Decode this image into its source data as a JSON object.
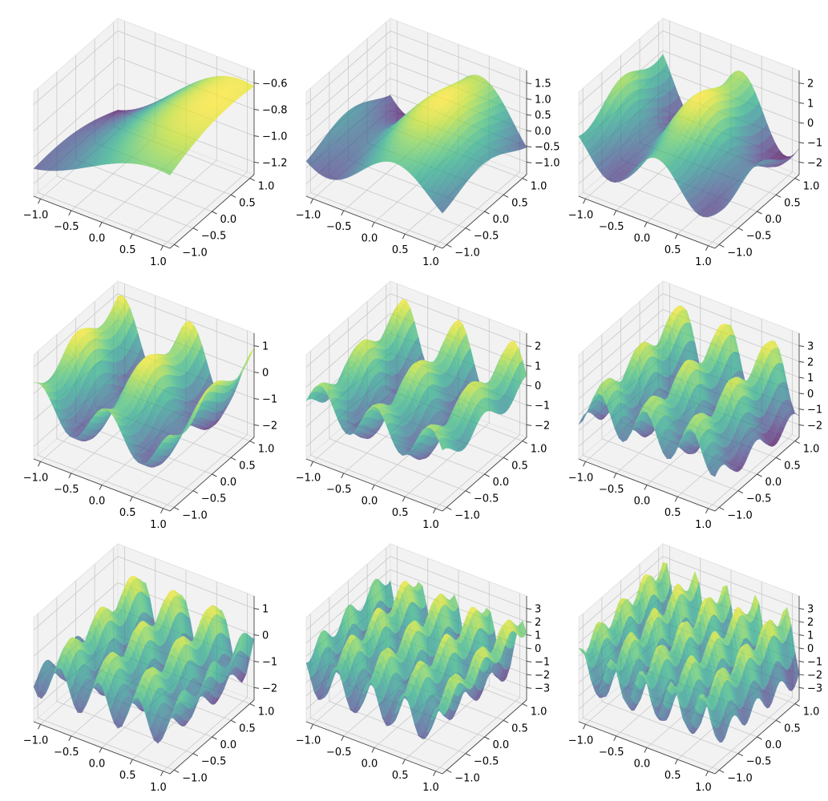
{
  "figure": {
    "colormap": "viridis",
    "surface_alpha": 0.7,
    "pane_color": "#f2f2f2",
    "grid_color": "#c8c8c8"
  },
  "chart_data": [
    {
      "type": "surface",
      "row": 1,
      "col": 1,
      "freq": 0.5,
      "x_ticks": [
        "−1.0",
        "−0.5",
        "0.0",
        "0.5",
        "1.0"
      ],
      "y_ticks": [
        "−1.0",
        "−0.5",
        "0.0",
        "0.5",
        "1.0"
      ],
      "z_ticks": [
        "−1.2",
        "−1.0",
        "−0.8",
        "−0.6"
      ],
      "zlim": [
        -1.3,
        -0.5
      ]
    },
    {
      "type": "surface",
      "row": 1,
      "col": 2,
      "freq": 1.0,
      "x_ticks": [
        "−1.0",
        "−0.5",
        "0.0",
        "0.5",
        "1.0"
      ],
      "y_ticks": [
        "−1.0",
        "−0.5",
        "0.0",
        "0.5",
        "1.0"
      ],
      "z_ticks": [
        "−1.0",
        "−0.5",
        "0.0",
        "0.5",
        "1.0",
        "1.5"
      ],
      "zlim": [
        -1.3,
        1.9
      ]
    },
    {
      "type": "surface",
      "row": 1,
      "col": 3,
      "freq": 1.5,
      "x_ticks": [
        "−1.0",
        "−0.5",
        "0.0",
        "0.5",
        "1.0"
      ],
      "y_ticks": [
        "−1.0",
        "−0.5",
        "0.0",
        "0.5",
        "1.0"
      ],
      "z_ticks": [
        "−2",
        "−1",
        "0",
        "1",
        "2"
      ],
      "zlim": [
        -2.1,
        2.6
      ]
    },
    {
      "type": "surface",
      "row": 2,
      "col": 1,
      "freq": 2.0,
      "x_ticks": [
        "−1.0",
        "−0.5",
        "0.0",
        "0.5",
        "1.0"
      ],
      "y_ticks": [
        "−1.0",
        "−0.5",
        "0.0",
        "0.5",
        "1.0"
      ],
      "z_ticks": [
        "−2",
        "−1",
        "0",
        "1"
      ],
      "zlim": [
        -2.6,
        2.0
      ]
    },
    {
      "type": "surface",
      "row": 2,
      "col": 2,
      "freq": 2.5,
      "x_ticks": [
        "−1.0",
        "−0.5",
        "0.0",
        "0.5",
        "1.0"
      ],
      "y_ticks": [
        "−1.0",
        "−0.5",
        "0.0",
        "0.5",
        "1.0"
      ],
      "z_ticks": [
        "−2",
        "−1",
        "0",
        "1",
        "2"
      ],
      "zlim": [
        -2.1,
        2.4
      ]
    },
    {
      "type": "surface",
      "row": 2,
      "col": 3,
      "freq": 3.0,
      "x_ticks": [
        "−1.0",
        "−0.5",
        "0.0",
        "0.5",
        "1.0"
      ],
      "y_ticks": [
        "−1.0",
        "−0.5",
        "0.0",
        "0.5",
        "1.0"
      ],
      "z_ticks": [
        "−2",
        "−1",
        "0",
        "1",
        "2",
        "3"
      ],
      "zlim": [
        -2.3,
        3.2
      ]
    },
    {
      "type": "surface",
      "row": 3,
      "col": 1,
      "freq": 3.5,
      "x_ticks": [
        "−1.0",
        "−0.5",
        "0.0",
        "0.5",
        "1.0"
      ],
      "y_ticks": [
        "−1.0",
        "−0.5",
        "0.0",
        "0.5",
        "1.0"
      ],
      "z_ticks": [
        "−2",
        "−1",
        "0",
        "1"
      ],
      "zlim": [
        -2.1,
        1.9
      ]
    },
    {
      "type": "surface",
      "row": 3,
      "col": 2,
      "freq": 4.0,
      "x_ticks": [
        "−1.0",
        "−0.5",
        "0.0",
        "0.5",
        "1.0"
      ],
      "y_ticks": [
        "−1.0",
        "−0.5",
        "0.0",
        "0.5",
        "1.0"
      ],
      "z_ticks": [
        "−3",
        "−2",
        "−1",
        "0",
        "1",
        "2",
        "3"
      ],
      "zlim": [
        -3.4,
        3.5
      ]
    },
    {
      "type": "surface",
      "row": 3,
      "col": 3,
      "freq": 4.5,
      "x_ticks": [
        "−1.0",
        "−0.5",
        "0.0",
        "0.5",
        "1.0"
      ],
      "y_ticks": [
        "−1.0",
        "−0.5",
        "0.0",
        "0.5",
        "1.0"
      ],
      "z_ticks": [
        "−3",
        "−2",
        "−1",
        "0",
        "1",
        "2",
        "3"
      ],
      "zlim": [
        -3.4,
        3.4
      ]
    }
  ]
}
